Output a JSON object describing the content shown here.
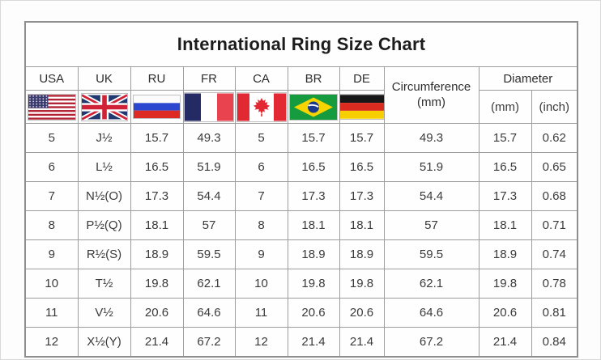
{
  "title": "International Ring Size Chart",
  "header": {
    "country_columns": [
      {
        "label": "USA",
        "flag_icon": "usa-flag-icon"
      },
      {
        "label": "UK",
        "flag_icon": "uk-flag-icon"
      },
      {
        "label": "RU",
        "flag_icon": "russia-flag-icon"
      },
      {
        "label": "FR",
        "flag_icon": "france-flag-icon"
      },
      {
        "label": "CA",
        "flag_icon": "canada-flag-icon"
      },
      {
        "label": "BR",
        "flag_icon": "brazil-flag-icon"
      },
      {
        "label": "DE",
        "flag_icon": "germany-flag-icon"
      }
    ],
    "circumference_label": "Circumference",
    "circumference_unit": "(mm)",
    "diameter_label": "Diameter",
    "diameter_mm_label": "(mm)",
    "diameter_inch_label": "(inch)"
  },
  "chart_data": {
    "type": "table",
    "title": "International Ring Size Chart",
    "columns": [
      "USA",
      "UK",
      "RU",
      "FR",
      "CA",
      "BR",
      "DE",
      "Circumference (mm)",
      "Diameter (mm)",
      "Diameter (inch)"
    ],
    "rows": [
      [
        "5",
        "J½",
        "15.7",
        "49.3",
        "5",
        "15.7",
        "15.7",
        "49.3",
        "15.7",
        "0.62"
      ],
      [
        "6",
        "L½",
        "16.5",
        "51.9",
        "6",
        "16.5",
        "16.5",
        "51.9",
        "16.5",
        "0.65"
      ],
      [
        "7",
        "N½(O)",
        "17.3",
        "54.4",
        "7",
        "17.3",
        "17.3",
        "54.4",
        "17.3",
        "0.68"
      ],
      [
        "8",
        "P½(Q)",
        "18.1",
        "57",
        "8",
        "18.1",
        "18.1",
        "57",
        "18.1",
        "0.71"
      ],
      [
        "9",
        "R½(S)",
        "18.9",
        "59.5",
        "9",
        "18.9",
        "18.9",
        "59.5",
        "18.9",
        "0.74"
      ],
      [
        "10",
        "T½",
        "19.8",
        "62.1",
        "10",
        "19.8",
        "19.8",
        "62.1",
        "19.8",
        "0.78"
      ],
      [
        "11",
        "V½",
        "20.6",
        "64.6",
        "11",
        "20.6",
        "20.6",
        "64.6",
        "20.6",
        "0.81"
      ],
      [
        "12",
        "X½(Y)",
        "21.4",
        "67.2",
        "12",
        "21.4",
        "21.4",
        "67.2",
        "21.4",
        "0.84"
      ]
    ]
  },
  "colors": {
    "grid_line": "#9d9d9d",
    "outer_border": "#8f8f8f",
    "text": "#3b3b3b",
    "title_text": "#1c1c1c",
    "background": "#fdfdfd"
  }
}
